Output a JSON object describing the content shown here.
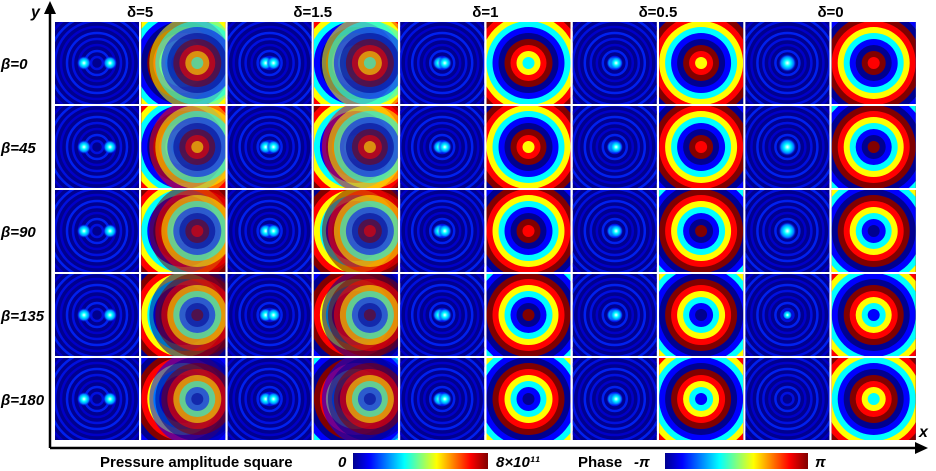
{
  "figure": {
    "axis_x_label": "x",
    "axis_y_label": "y",
    "columns": [
      {
        "symbol": "δ",
        "label": "δ=5",
        "value": 5
      },
      {
        "symbol": "δ",
        "label": "δ=1.5",
        "value": 1.5
      },
      {
        "symbol": "δ",
        "label": "δ=1",
        "value": 1
      },
      {
        "symbol": "δ",
        "label": "δ=0.5",
        "value": 0.5
      },
      {
        "symbol": "δ",
        "label": "δ=0",
        "value": 0
      }
    ],
    "rows": [
      {
        "symbol": "β",
        "label": "β=0",
        "value": 0
      },
      {
        "symbol": "β",
        "label": "β=45",
        "value": 45
      },
      {
        "symbol": "β",
        "label": "β=90",
        "value": 90
      },
      {
        "symbol": "β",
        "label": "β=135",
        "value": 135
      },
      {
        "symbol": "β",
        "label": "β=180",
        "value": 180
      }
    ],
    "panel_types": [
      "Pressure amplitude square",
      "Phase"
    ],
    "colorbars": {
      "amplitude": {
        "label": "Pressure amplitude square",
        "min_label": "0",
        "max_label": "8×10¹¹"
      },
      "phase": {
        "label": "Phase",
        "min_label": "-π",
        "max_label": "π"
      }
    },
    "colormap": [
      "#00008f",
      "#0000ff",
      "#00ffff",
      "#ffff00",
      "#ff0000",
      "#800000"
    ],
    "background_color": "#00008f"
  }
}
